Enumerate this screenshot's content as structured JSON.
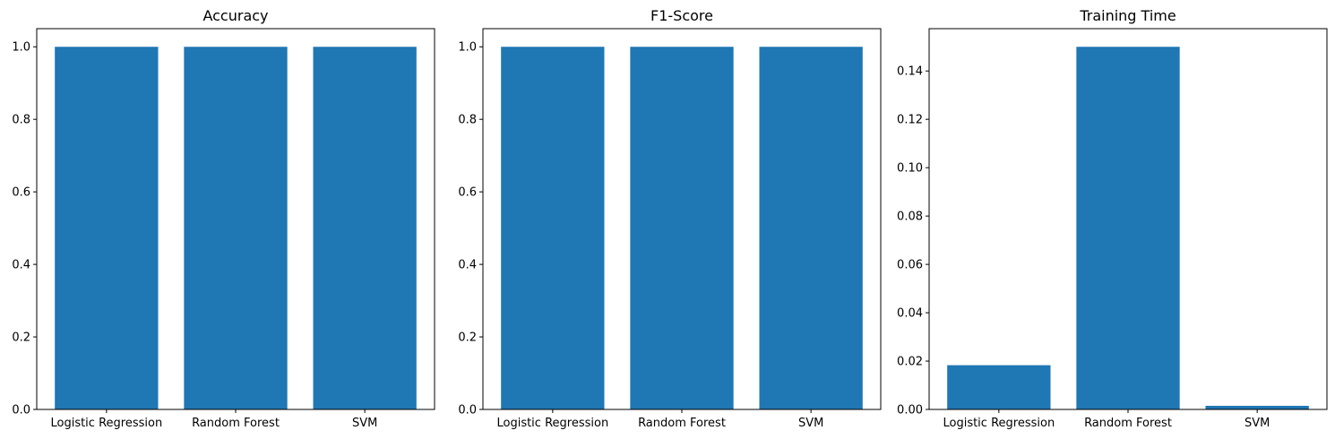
{
  "chart_data": [
    {
      "type": "bar",
      "title": "Accuracy",
      "xlabel": "",
      "ylabel": "",
      "categories": [
        "Logistic Regression",
        "Random Forest",
        "SVM"
      ],
      "values": [
        1.0,
        1.0,
        1.0
      ],
      "ylim": [
        0,
        1.05
      ],
      "yticks": [
        "0.0",
        "0.2",
        "0.4",
        "0.6",
        "0.8",
        "1.0"
      ],
      "grid": false,
      "bar_color": "#1f77b4"
    },
    {
      "type": "bar",
      "title": "F1-Score",
      "xlabel": "",
      "ylabel": "",
      "categories": [
        "Logistic Regression",
        "Random Forest",
        "SVM"
      ],
      "values": [
        1.0,
        1.0,
        1.0
      ],
      "ylim": [
        0,
        1.05
      ],
      "yticks": [
        "0.0",
        "0.2",
        "0.4",
        "0.6",
        "0.8",
        "1.0"
      ],
      "grid": false,
      "bar_color": "#1f77b4"
    },
    {
      "type": "bar",
      "title": "Training Time",
      "xlabel": "",
      "ylabel": "",
      "categories": [
        "Logistic Regression",
        "Random Forest",
        "SVM"
      ],
      "values": [
        0.0183,
        0.15,
        0.0015
      ],
      "ylim": [
        0,
        0.1575
      ],
      "yticks": [
        "0.00",
        "0.02",
        "0.04",
        "0.06",
        "0.08",
        "0.10",
        "0.12",
        "0.14"
      ],
      "grid": false,
      "bar_color": "#1f77b4"
    }
  ]
}
